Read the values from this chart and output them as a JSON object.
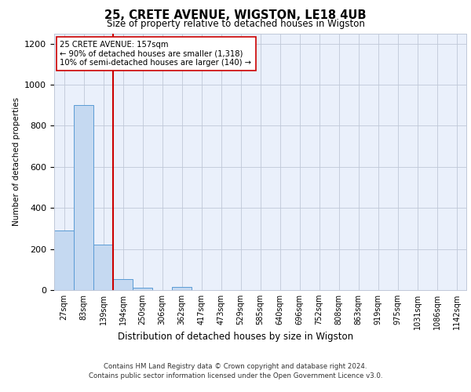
{
  "title": "25, CRETE AVENUE, WIGSTON, LE18 4UB",
  "subtitle": "Size of property relative to detached houses in Wigston",
  "xlabel": "Distribution of detached houses by size in Wigston",
  "ylabel": "Number of detached properties",
  "bin_labels": [
    "27sqm",
    "83sqm",
    "139sqm",
    "194sqm",
    "250sqm",
    "306sqm",
    "362sqm",
    "417sqm",
    "473sqm",
    "529sqm",
    "585sqm",
    "640sqm",
    "696sqm",
    "752sqm",
    "808sqm",
    "863sqm",
    "919sqm",
    "975sqm",
    "1031sqm",
    "1086sqm",
    "1142sqm"
  ],
  "bar_values": [
    290,
    900,
    220,
    55,
    10,
    0,
    15,
    0,
    0,
    0,
    0,
    0,
    0,
    0,
    0,
    0,
    0,
    0,
    0,
    0,
    0
  ],
  "bar_color": "#c5d9f1",
  "bar_edge_color": "#5a9bd5",
  "property_line_x": 3,
  "property_line_color": "#cc0000",
  "ylim": [
    0,
    1250
  ],
  "yticks": [
    0,
    200,
    400,
    600,
    800,
    1000,
    1200
  ],
  "annotation_text": "25 CRETE AVENUE: 157sqm\n← 90% of detached houses are smaller (1,318)\n10% of semi-detached houses are larger (140) →",
  "annotation_box_color": "#ffffff",
  "annotation_box_edge": "#cc0000",
  "footer_line1": "Contains HM Land Registry data © Crown copyright and database right 2024.",
  "footer_line2": "Contains public sector information licensed under the Open Government Licence v3.0.",
  "plot_bg_color": "#eaf0fb"
}
